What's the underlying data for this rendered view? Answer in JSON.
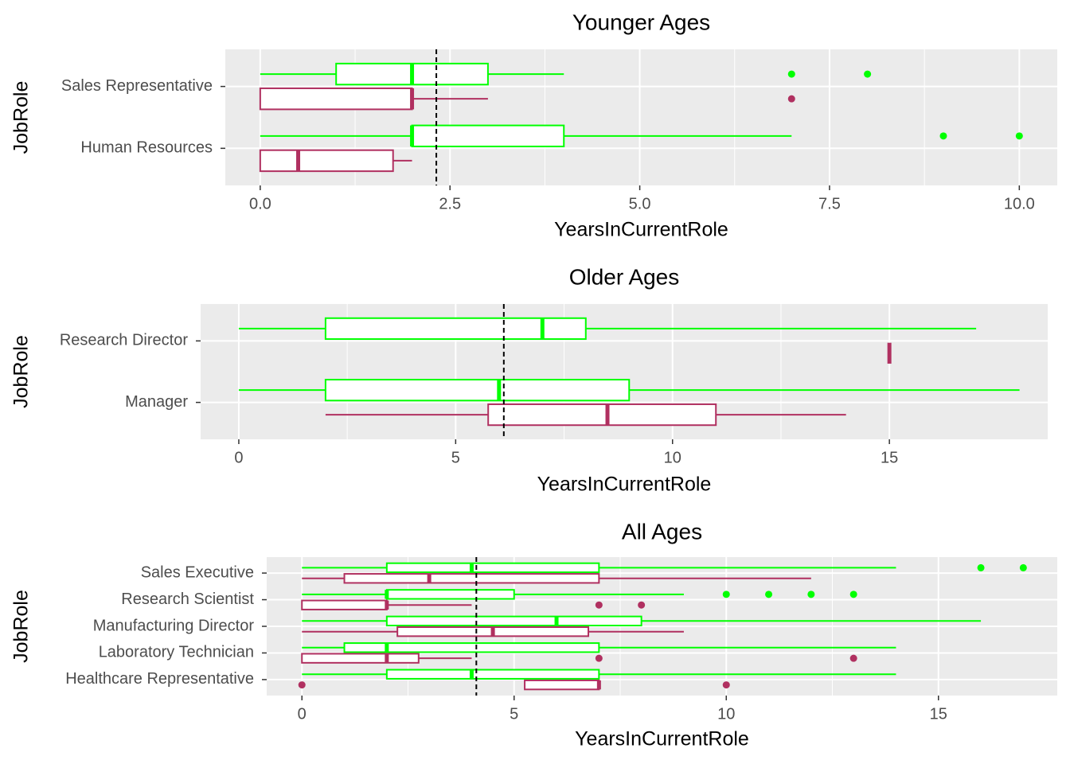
{
  "chart_data": [
    {
      "type": "boxplot",
      "title": "Younger Ages",
      "x_label": "YearsInCurrentRole",
      "y_label": "JobRole",
      "categories": [
        "Human Resources",
        "Sales Representative"
      ],
      "series": [
        {
          "color": "#00ff00",
          "boxes": [
            {
              "whislo": 0,
              "q1": 2,
              "med": 2,
              "q3": 4,
              "whishi": 7,
              "outliers": [
                9,
                10
              ]
            },
            {
              "whislo": 0,
              "q1": 1,
              "med": 2,
              "q3": 3,
              "whishi": 4,
              "outliers": [
                7,
                8
              ]
            }
          ]
        },
        {
          "color": "#b03060",
          "boxes": [
            {
              "whislo": 0,
              "q1": 0,
              "med": 0.5,
              "q3": 1.75,
              "whishi": 2,
              "outliers": []
            },
            {
              "whislo": 0,
              "q1": 0,
              "med": 2,
              "q3": 2,
              "whishi": 3,
              "outliers": [
                7
              ]
            }
          ]
        }
      ],
      "reference_line": 2.32,
      "xlim": [
        -0.46,
        10.5
      ],
      "xticks": [
        {
          "value": 0,
          "label": "0.0"
        },
        2.5,
        {
          "value": 5,
          "label": "5.0"
        },
        7.5,
        {
          "value": 10,
          "label": "10.0"
        }
      ],
      "grid": true
    },
    {
      "type": "boxplot",
      "title": "Older Ages",
      "x_label": "YearsInCurrentRole",
      "y_label": "JobRole",
      "categories": [
        "Manager",
        "Research Director"
      ],
      "series": [
        {
          "color": "#00ff00",
          "boxes": [
            {
              "whislo": 0,
              "q1": 2,
              "med": 6,
              "q3": 9,
              "whishi": 18,
              "outliers": []
            },
            {
              "whislo": 0,
              "q1": 2,
              "med": 7,
              "q3": 8,
              "whishi": 17,
              "outliers": []
            }
          ]
        },
        {
          "color": "#b03060",
          "boxes": [
            {
              "whislo": 2,
              "q1": 5.75,
              "med": 8.5,
              "q3": 11,
              "whishi": 14,
              "outliers": []
            },
            {
              "whislo": 15,
              "q1": 15,
              "med": 15,
              "q3": 15,
              "whishi": 15,
              "outliers": []
            }
          ]
        }
      ],
      "reference_line": 6.11,
      "xlim": [
        -0.88,
        18.65
      ],
      "xticks": [
        0,
        5,
        10,
        15
      ],
      "grid": true
    },
    {
      "type": "boxplot",
      "title": "All Ages",
      "x_label": "YearsInCurrentRole",
      "y_label": "JobRole",
      "categories": [
        "Healthcare Representative",
        "Laboratory Technician",
        "Manufacturing Director",
        "Research Scientist",
        "Sales Executive"
      ],
      "series": [
        {
          "color": "#00ff00",
          "boxes": [
            {
              "whislo": 0,
              "q1": 2,
              "med": 4,
              "q3": 7,
              "whishi": 14,
              "outliers": []
            },
            {
              "whislo": 0,
              "q1": 1,
              "med": 2,
              "q3": 7,
              "whishi": 14,
              "outliers": []
            },
            {
              "whislo": 0,
              "q1": 2,
              "med": 6,
              "q3": 8,
              "whishi": 16,
              "outliers": []
            },
            {
              "whislo": 0,
              "q1": 2,
              "med": 2,
              "q3": 5,
              "whishi": 9,
              "outliers": [
                10,
                11,
                12,
                13
              ]
            },
            {
              "whislo": 0,
              "q1": 2,
              "med": 4,
              "q3": 7,
              "whishi": 14,
              "outliers": [
                16,
                17
              ]
            }
          ]
        },
        {
          "color": "#b03060",
          "boxes": [
            {
              "whislo": 5.25,
              "q1": 5.25,
              "med": 7,
              "q3": 7,
              "whishi": 7,
              "outliers": [
                0,
                10
              ]
            },
            {
              "whislo": 0,
              "q1": 0,
              "med": 2,
              "q3": 2.75,
              "whishi": 4,
              "outliers": [
                7,
                13
              ]
            },
            {
              "whislo": 0,
              "q1": 2.25,
              "med": 4.5,
              "q3": 6.75,
              "whishi": 9,
              "outliers": []
            },
            {
              "whislo": 0,
              "q1": 0,
              "med": 2,
              "q3": 2,
              "whishi": 4,
              "outliers": [
                7,
                8
              ]
            },
            {
              "whislo": 0,
              "q1": 1,
              "med": 3,
              "q3": 7,
              "whishi": 12,
              "outliers": []
            }
          ]
        }
      ],
      "reference_line": 4.11,
      "xlim": [
        -0.83,
        17.8
      ],
      "xticks": [
        0,
        5,
        10,
        15
      ],
      "grid": true
    }
  ]
}
